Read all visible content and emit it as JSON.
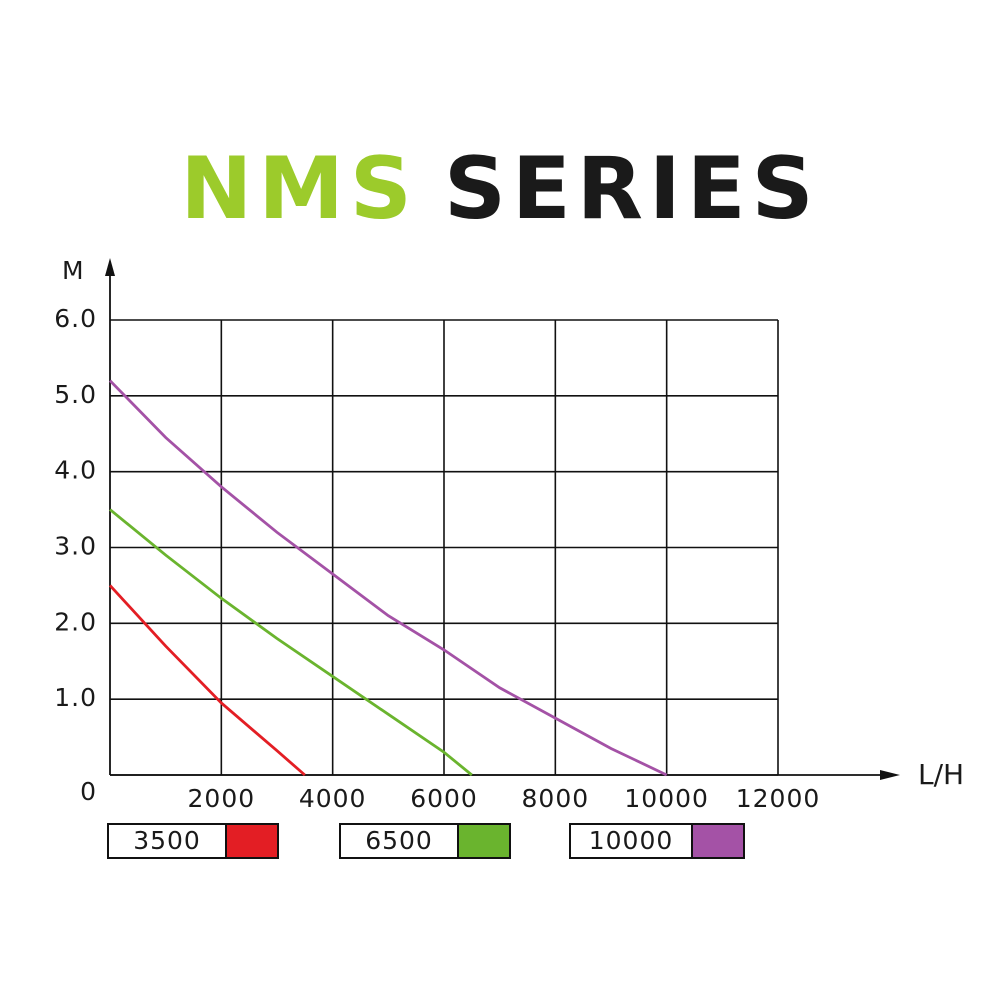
{
  "chart_data": {
    "type": "line",
    "title": [
      "NMS",
      "SERIES"
    ],
    "title_colors": [
      "#9ccb2b",
      "#1a1a1a"
    ],
    "y_label": "M",
    "x_label": "L/H",
    "xlim": [
      0,
      12000
    ],
    "xticks": [
      2000,
      4000,
      6000,
      8000,
      10000,
      12000
    ],
    "ylim": [
      0,
      6
    ],
    "yticks": [
      0,
      {
        "value": 1,
        "label": "1.0"
      },
      {
        "value": 2,
        "label": "2.0"
      },
      {
        "value": 3,
        "label": "3.0"
      },
      {
        "value": 4,
        "label": "4.0"
      },
      {
        "value": 5,
        "label": "5.0"
      },
      {
        "value": 6,
        "label": "6.0"
      }
    ],
    "grid": true,
    "series": [
      {
        "name": "3500",
        "color": "#e31e24",
        "x": [
          0,
          1000,
          2000,
          3000,
          3500
        ],
        "values": [
          2.5,
          1.7,
          0.95,
          0.32,
          0
        ]
      },
      {
        "name": "6500",
        "color": "#6ab42e",
        "x": [
          0,
          1000,
          2000,
          3000,
          4000,
          5000,
          6000,
          6500
        ],
        "values": [
          3.5,
          2.9,
          2.33,
          1.8,
          1.3,
          0.8,
          0.3,
          0
        ]
      },
      {
        "name": "10000",
        "color": "#a452a6",
        "x": [
          0,
          1000,
          2000,
          3000,
          4000,
          5000,
          6000,
          7000,
          8000,
          9000,
          10000
        ],
        "values": [
          5.2,
          4.45,
          3.8,
          3.2,
          2.65,
          2.1,
          1.65,
          1.15,
          0.75,
          0.35,
          0
        ]
      }
    ]
  }
}
